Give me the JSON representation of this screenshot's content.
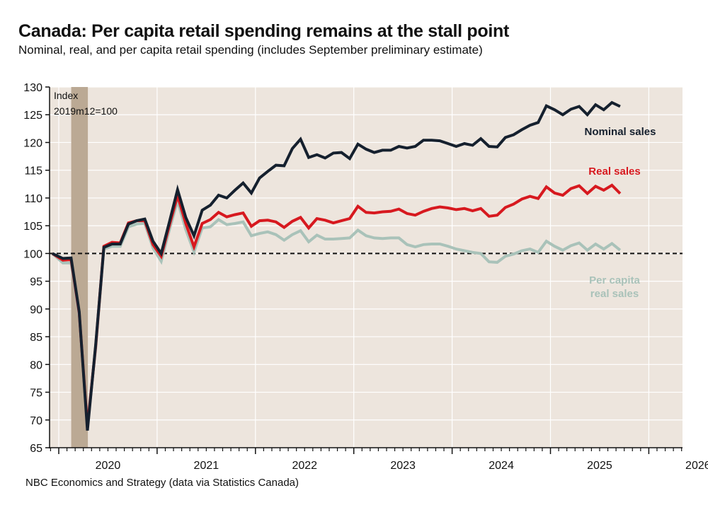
{
  "title": "Canada: Per capita retail spending remains at the stall point",
  "subtitle": "Nominal, real, and per capita retail spending (includes September preliminary estimate)",
  "source": "NBC Economics and Strategy (data via Statistics Canada)",
  "chart_data": {
    "type": "line",
    "title": "Canada: Per capita retail spending remains at the stall point",
    "subtitle": "Nominal, real, and per capita retail spending (includes September preliminary estimate)",
    "xlabel": "",
    "ylabel": "",
    "annotation": [
      "Index",
      "2019m12=100"
    ],
    "ylim": [
      65,
      130
    ],
    "yticks": [
      65,
      70,
      75,
      80,
      85,
      90,
      95,
      100,
      105,
      110,
      115,
      120,
      125,
      130
    ],
    "xlim": [
      "2019-12",
      "2026-04"
    ],
    "xtick_labels": [
      "2020",
      "2021",
      "2022",
      "2023",
      "2024",
      "2025",
      "2026"
    ],
    "grid": true,
    "reference_line": {
      "value": 100,
      "style": "dashed",
      "color": "#111111"
    },
    "shaded_periods": [
      {
        "start": "2020-02",
        "end": "2020-04",
        "label": "recession",
        "color": "#bba994"
      }
    ],
    "background_color": "#ede5dd",
    "x": [
      "2019-12",
      "2020-01",
      "2020-02",
      "2020-03",
      "2020-04",
      "2020-05",
      "2020-06",
      "2020-07",
      "2020-08",
      "2020-09",
      "2020-10",
      "2020-11",
      "2020-12",
      "2021-01",
      "2021-02",
      "2021-03",
      "2021-04",
      "2021-05",
      "2021-06",
      "2021-07",
      "2021-08",
      "2021-09",
      "2021-10",
      "2021-11",
      "2021-12",
      "2022-01",
      "2022-02",
      "2022-03",
      "2022-04",
      "2022-05",
      "2022-06",
      "2022-07",
      "2022-08",
      "2022-09",
      "2022-10",
      "2022-11",
      "2022-12",
      "2023-01",
      "2023-02",
      "2023-03",
      "2023-04",
      "2023-05",
      "2023-06",
      "2023-07",
      "2023-08",
      "2023-09",
      "2023-10",
      "2023-11",
      "2023-12",
      "2024-01",
      "2024-02",
      "2024-03",
      "2024-04",
      "2024-05",
      "2024-06",
      "2024-07",
      "2024-08",
      "2024-09",
      "2024-10",
      "2024-11",
      "2024-12",
      "2025-01",
      "2025-02",
      "2025-03",
      "2025-04",
      "2025-05",
      "2025-06",
      "2025-07",
      "2025-08",
      "2025-09"
    ],
    "series": [
      {
        "name": "Per capita real sales",
        "label_lines": [
          "Per capita",
          "real sales"
        ],
        "color": "#a9c2b9",
        "values": [
          100,
          98.3,
          98.3,
          88.6,
          69.2,
          82.8,
          100.8,
          101.3,
          101.3,
          104.8,
          105.3,
          105.4,
          101.0,
          98.6,
          104.3,
          109.5,
          104.3,
          100.3,
          104.6,
          104.8,
          106.1,
          105.2,
          105.4,
          105.7,
          103.2,
          103.6,
          103.9,
          103.4,
          102.4,
          103.4,
          104.1,
          102.1,
          103.3,
          102.6,
          102.6,
          102.7,
          102.8,
          104.2,
          103.2,
          102.8,
          102.7,
          102.8,
          102.8,
          101.6,
          101.2,
          101.6,
          101.7,
          101.7,
          101.3,
          100.8,
          100.5,
          100.2,
          100.0,
          98.5,
          98.4,
          99.5,
          99.9,
          100.5,
          100.8,
          100.2,
          102.2,
          101.3,
          100.6,
          101.4,
          101.9,
          100.6,
          101.7,
          100.8,
          101.8,
          100.6
        ]
      },
      {
        "name": "Real sales",
        "label_lines": [
          "Real sales"
        ],
        "color": "#d7191f",
        "values": [
          100,
          98.8,
          98.9,
          89.2,
          68.8,
          83.2,
          101.3,
          102.0,
          101.9,
          105.5,
          105.9,
          105.9,
          101.6,
          99.5,
          105.1,
          110.4,
          105.4,
          101.2,
          105.4,
          106.1,
          107.4,
          106.6,
          107.0,
          107.3,
          104.9,
          105.9,
          106.0,
          105.7,
          104.7,
          105.8,
          106.5,
          104.6,
          106.3,
          106.0,
          105.5,
          105.9,
          106.3,
          108.5,
          107.4,
          107.3,
          107.5,
          107.6,
          108.0,
          107.2,
          106.9,
          107.6,
          108.1,
          108.4,
          108.2,
          107.9,
          108.1,
          107.7,
          108.1,
          106.7,
          106.9,
          108.3,
          108.9,
          109.8,
          110.3,
          109.9,
          112.0,
          110.9,
          110.5,
          111.7,
          112.2,
          110.8,
          112.1,
          111.4,
          112.3,
          110.8
        ]
      },
      {
        "name": "Nominal sales",
        "label_lines": [
          "Nominal sales"
        ],
        "color": "#15202e",
        "values": [
          100,
          99.1,
          99.2,
          89.5,
          68.1,
          83.5,
          101.1,
          101.7,
          101.7,
          105.3,
          105.9,
          106.2,
          102.2,
          100.0,
          105.7,
          111.5,
          106.5,
          103.2,
          107.8,
          108.7,
          110.5,
          110.0,
          111.4,
          112.7,
          110.9,
          113.6,
          114.8,
          115.9,
          115.8,
          118.9,
          120.6,
          117.3,
          117.8,
          117.2,
          118.1,
          118.2,
          117.1,
          119.7,
          118.8,
          118.2,
          118.6,
          118.6,
          119.3,
          119.0,
          119.3,
          120.4,
          120.4,
          120.3,
          119.8,
          119.3,
          119.8,
          119.5,
          120.7,
          119.3,
          119.2,
          120.9,
          121.4,
          122.3,
          123.1,
          123.6,
          126.6,
          125.9,
          125.0,
          126.0,
          126.5,
          125.0,
          126.8,
          125.9,
          127.2,
          126.5
        ]
      }
    ]
  }
}
